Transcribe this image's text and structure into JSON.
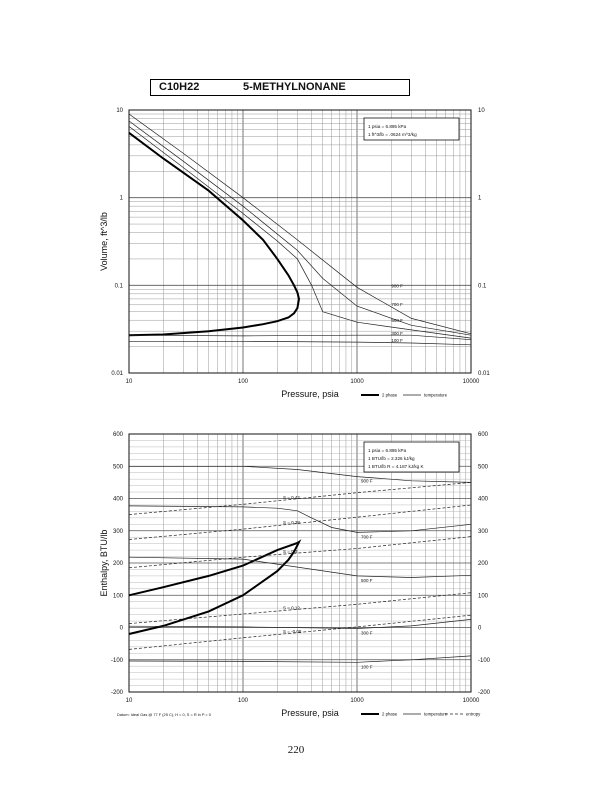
{
  "header": {
    "formula": "C10H22",
    "compound": "5-METHYLNONANE"
  },
  "page_number": "220",
  "chart_data": [
    {
      "type": "line",
      "xscale": "log",
      "yscale": "log",
      "xlim": [
        10,
        10000
      ],
      "ylim": [
        0.01,
        10
      ],
      "xlabel": "Pressure,  psia",
      "ylabel": "Volume, ft^3/lb",
      "x_ticks": [
        "10",
        "100",
        "1000",
        "10000"
      ],
      "y_ticks": [
        "0.01",
        "0.1",
        "1",
        "10"
      ],
      "grid": true,
      "conversion_box": [
        "1 psia  =  6.895 kPa",
        "1 ft^3/lb  =  .0624 m^3/kg"
      ],
      "legend": [
        {
          "label": "2 phase",
          "style": "thick"
        },
        {
          "label": "temperature",
          "style": "thin"
        }
      ],
      "series": [
        {
          "kind": "two-phase",
          "x": [
            10,
            20,
            50,
            100,
            150,
            200,
            250,
            280,
            300,
            310,
            300,
            280,
            250,
            200,
            150,
            100,
            50,
            20,
            10
          ],
          "y": [
            5.5,
            2.8,
            1.2,
            0.55,
            0.33,
            0.2,
            0.13,
            0.1,
            0.083,
            0.07,
            0.055,
            0.048,
            0.043,
            0.039,
            0.036,
            0.033,
            0.03,
            0.0275,
            0.027
          ]
        },
        {
          "kind": "temperature",
          "label": "900 F",
          "x": [
            10,
            30,
            100,
            300,
            1000,
            3000,
            10000
          ],
          "y": [
            9,
            3.2,
            1.0,
            0.33,
            0.095,
            0.042,
            0.028
          ]
        },
        {
          "kind": "temperature",
          "label": "700 F",
          "x": [
            10,
            30,
            100,
            300,
            500,
            1000,
            3000,
            10000
          ],
          "y": [
            7.5,
            2.6,
            0.8,
            0.25,
            0.12,
            0.058,
            0.035,
            0.027
          ]
        },
        {
          "kind": "temperature",
          "label": "500 F",
          "x": [
            10,
            30,
            100,
            200,
            300,
            400,
            500,
            1000,
            3000,
            10000
          ],
          "y": [
            6.5,
            2.2,
            0.66,
            0.32,
            0.2,
            0.1,
            0.05,
            0.038,
            0.031,
            0.025
          ]
        },
        {
          "kind": "temperature",
          "label": "300 F",
          "x": [
            10,
            100,
            1000,
            3000,
            10000
          ],
          "y": [
            0.027,
            0.0265,
            0.027,
            0.027,
            0.024
          ]
        },
        {
          "kind": "temperature",
          "label": "100 F",
          "x": [
            10,
            100,
            1000,
            3000,
            10000
          ],
          "y": [
            0.023,
            0.023,
            0.0225,
            0.022,
            0.021
          ]
        }
      ]
    },
    {
      "type": "line",
      "xscale": "log",
      "xlim": [
        10,
        10000
      ],
      "ylim": [
        -200,
        600
      ],
      "xlabel": "Pressure,  psia",
      "ylabel": "Enthalpy, BTU/lb",
      "x_ticks": [
        "10",
        "100",
        "1000",
        "10000"
      ],
      "y_ticks": [
        "600",
        "500",
        "400",
        "300",
        "200",
        "100",
        "0",
        "-100",
        "-200"
      ],
      "grid": true,
      "conversion_box": [
        "1 psia  =  6.895 kPa",
        "1 BTU/lb  =  2.326 kJ/kg",
        "1 BTU/lb R  =  4.187 kJ/kg K"
      ],
      "footnote": "Datum: Ideal Gas @ 77 F (25 C),  H = 0,  S = R ln P = 0",
      "legend": [
        {
          "label": "2 phase",
          "style": "thick"
        },
        {
          "label": "temperature",
          "style": "thin"
        },
        {
          "label": "entropy",
          "style": "dashed"
        }
      ],
      "series": [
        {
          "kind": "two-phase",
          "x": [
            10,
            20,
            50,
            100,
            200,
            300,
            310,
            300,
            280,
            250,
            200,
            100,
            50,
            20,
            10
          ],
          "y": [
            100,
            125,
            160,
            192,
            240,
            262,
            265,
            255,
            235,
            210,
            175,
            100,
            50,
            5,
            -20
          ]
        },
        {
          "kind": "temperature",
          "label": "900 F",
          "x": [
            10,
            100,
            300,
            1000,
            3000,
            10000
          ],
          "y": [
            500,
            500,
            490,
            468,
            455,
            450
          ]
        },
        {
          "kind": "temperature",
          "label": "700 F",
          "x": [
            10,
            100,
            200,
            300,
            400,
            600,
            1000,
            3000,
            10000
          ],
          "y": [
            377,
            374,
            370,
            362,
            340,
            310,
            295,
            300,
            320
          ]
        },
        {
          "kind": "temperature",
          "label": "500 F",
          "x": [
            10,
            100,
            1000,
            3000,
            10000
          ],
          "y": [
            218,
            212,
            160,
            155,
            162
          ]
        },
        {
          "kind": "temperature",
          "label": "300 F",
          "x": [
            10,
            100,
            1000,
            3000,
            10000
          ],
          "y": [
            4,
            2,
            -3,
            5,
            25
          ]
        },
        {
          "kind": "temperature",
          "label": "100 F",
          "x": [
            10,
            100,
            1000,
            3000,
            10000
          ],
          "y": [
            -104,
            -105,
            -108,
            -100,
            -88
          ]
        },
        {
          "kind": "entropy",
          "label": "S = 0.42",
          "x": [
            10,
            100,
            1000,
            10000
          ],
          "y": [
            350,
            382,
            418,
            450
          ]
        },
        {
          "kind": "entropy",
          "label": "S = 0.38",
          "x": [
            10,
            100,
            1000,
            10000
          ],
          "y": [
            273,
            305,
            342,
            380
          ]
        },
        {
          "kind": "entropy",
          "label": "S = 0.3",
          "x": [
            10,
            100,
            1000,
            10000
          ],
          "y": [
            185,
            218,
            245,
            282
          ]
        },
        {
          "kind": "entropy",
          "label": "S = 0.12",
          "x": [
            10,
            100,
            1000,
            10000
          ],
          "y": [
            12,
            42,
            72,
            108
          ]
        },
        {
          "kind": "entropy",
          "label": "S = -0.08",
          "x": [
            10,
            100,
            1000,
            10000
          ],
          "y": [
            -68,
            -32,
            2,
            38
          ]
        }
      ]
    }
  ]
}
